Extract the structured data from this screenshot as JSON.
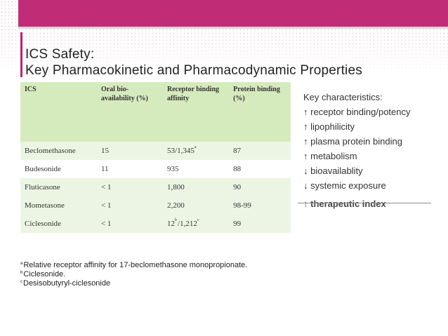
{
  "colors": {
    "banner": "#b7266e",
    "header_row": "#d6ebbd",
    "row_shade": "#ecf5e3"
  },
  "title": {
    "line1": "ICS Safety:",
    "line2": "Key Pharmacokinetic and Pharmacodynamic Properties"
  },
  "table": {
    "headers": [
      "ICS",
      "Oral bio-availability (%)",
      "Receptor binding affinity",
      "Protein binding (%)"
    ],
    "rows": [
      {
        "ics": "Beclomethasone",
        "oral": "15",
        "receptor": "53/1,345",
        "receptor_sup": "a",
        "protein": "87"
      },
      {
        "ics": "Budesonide",
        "oral": "11",
        "receptor": "935",
        "protein": "88"
      },
      {
        "ics": "Fluticasone",
        "oral": "< 1",
        "receptor": "1,800",
        "protein": "90"
      },
      {
        "ics": "Mometasone",
        "oral": "< 1",
        "receptor": "2,200",
        "protein": "98-99"
      },
      {
        "ics": "Ciclesonide",
        "oral": "< 1",
        "receptor_pre": "12",
        "receptor_pre_sup": "b",
        "receptor": "/1,212",
        "receptor_sup": "c",
        "protein": "99"
      }
    ]
  },
  "key": {
    "heading": "Key characteristics:",
    "items": [
      {
        "arrow": "↑",
        "text": "receptor binding/potency"
      },
      {
        "arrow": "↑",
        "text": "lipophilicity"
      },
      {
        "arrow": "↑",
        "text": "plasma protein binding"
      },
      {
        "arrow": "↑",
        "text": "metabolism"
      },
      {
        "arrow": "↓",
        "text": "bioavailablity"
      },
      {
        "arrow": "↓",
        "text": "systemic exposure"
      }
    ],
    "ti_arrow": "↑",
    "ti_text": "therapeutic index"
  },
  "footnotes": [
    {
      "mark": "a",
      "text": "Relative receptor affinity for 17-beclomethasone monopropionate."
    },
    {
      "mark": "b",
      "text": "Ciclesonide."
    },
    {
      "mark": "c",
      "text": "Desisobutyryl-ciclesonide"
    }
  ]
}
